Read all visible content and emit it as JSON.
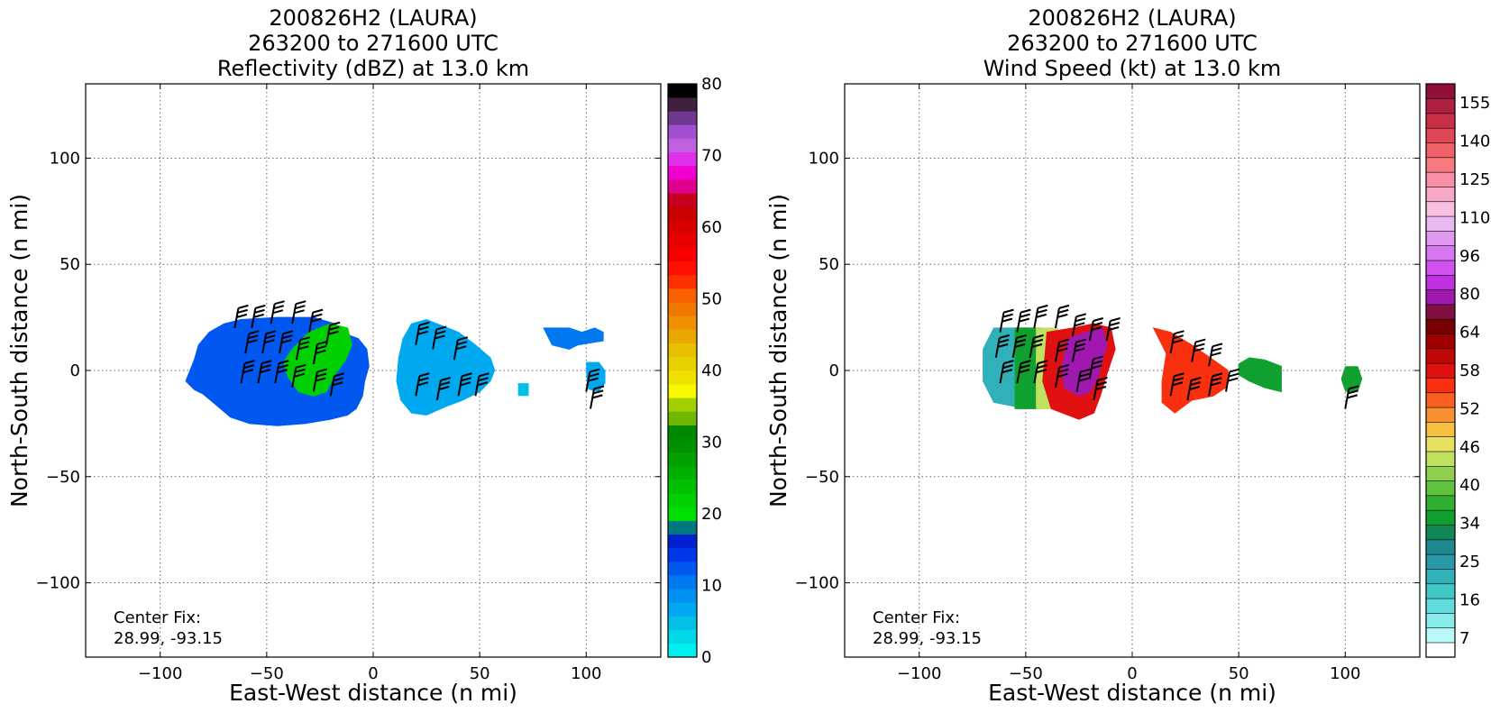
{
  "chart_data": [
    {
      "type": "heatmap",
      "title": [
        "200826H2 (LAURA)",
        "263200 to 271600 UTC",
        "Reflectivity (dBZ) at 13.0 km"
      ],
      "xlabel": "East-West distance (n mi)",
      "ylabel": "North-South distance (n mi)",
      "xlim": [
        -135,
        135
      ],
      "ylim": [
        -135,
        135
      ],
      "xticks": [
        -100,
        -50,
        0,
        50,
        100
      ],
      "yticks": [
        -100,
        -50,
        0,
        50,
        100
      ],
      "xtick_labels": [
        "−100",
        "−50",
        "0",
        "50",
        "100"
      ],
      "ytick_labels": [
        "−100",
        "−50",
        "0",
        "50",
        "100"
      ],
      "grid": true,
      "center_fix_label": "Center Fix:",
      "center_fix_value": "28.99, -93.15",
      "colorbar": {
        "min": 0,
        "max": 80,
        "ticks": [
          "0",
          "10",
          "20",
          "30",
          "40",
          "50",
          "60",
          "70",
          "80"
        ],
        "colors": [
          "#00f0f0",
          "#00d8e8",
          "#00c0e8",
          "#00a8f0",
          "#0090f0",
          "#0078f0",
          "#0058f0",
          "#0038e8",
          "#0020d0",
          "#007880",
          "#00e000",
          "#00d000",
          "#00c000",
          "#00b000",
          "#00a000",
          "#009000",
          "#008800",
          "#70b800",
          "#a0d000",
          "#f8f800",
          "#f0e000",
          "#e8d000",
          "#e8c000",
          "#e8a800",
          "#f09000",
          "#f07800",
          "#f86000",
          "#ff3000",
          "#ff1000",
          "#f80000",
          "#e80000",
          "#d80000",
          "#c80000",
          "#c80020",
          "#e00090",
          "#f000d0",
          "#e030e8",
          "#c060e0",
          "#a050d0",
          "#703890",
          "#402040",
          "#000000"
        ]
      },
      "echo_regions": [
        {
          "name": "main-blue",
          "value": 12
        },
        {
          "name": "inner-green",
          "value": 22
        },
        {
          "name": "east-cyan",
          "value": 6
        },
        {
          "name": "far-east",
          "value": 10
        }
      ]
    },
    {
      "type": "heatmap",
      "title": [
        "200826H2 (LAURA)",
        "263200 to 271600 UTC",
        "Wind Speed (kt) at 13.0 km"
      ],
      "xlabel": "East-West distance (n mi)",
      "ylabel": "North-South distance (n mi)",
      "xlim": [
        -135,
        135
      ],
      "ylim": [
        -135,
        135
      ],
      "xticks": [
        -100,
        -50,
        0,
        50,
        100
      ],
      "yticks": [
        -100,
        -50,
        0,
        50,
        100
      ],
      "xtick_labels": [
        "−100",
        "−50",
        "0",
        "50",
        "100"
      ],
      "ytick_labels": [
        "−100",
        "−50",
        "0",
        "50",
        "100"
      ],
      "grid": true,
      "center_fix_label": "Center Fix:",
      "center_fix_value": "28.99, -93.15",
      "colorbar": {
        "ticks": [
          "7",
          "16",
          "25",
          "34",
          "40",
          "46",
          "52",
          "58",
          "64",
          "80",
          "96",
          "110",
          "125",
          "140",
          "155"
        ],
        "colors": [
          "#ffffff",
          "#b8f8f8",
          "#88ecec",
          "#60dcdc",
          "#40c8c8",
          "#30b0b8",
          "#2898a8",
          "#208890",
          "#108858",
          "#10a030",
          "#30b030",
          "#60c040",
          "#90d050",
          "#c0e060",
          "#e8e060",
          "#f8c040",
          "#f89030",
          "#f86020",
          "#f83010",
          "#e01010",
          "#c00808",
          "#a00000",
          "#780000",
          "#801040",
          "#a018b0",
          "#c030e0",
          "#d050f0",
          "#d878f0",
          "#e098f0",
          "#e8b8f0",
          "#f8c0e0",
          "#f8a8c8",
          "#f890a8",
          "#f87880",
          "#f06068",
          "#e04858",
          "#c83048",
          "#b02040",
          "#901038"
        ]
      },
      "wind_regions": [
        {
          "name": "west-teal",
          "value": 24
        },
        {
          "name": "green-band",
          "value": 36
        },
        {
          "name": "yellow-band",
          "value": 45
        },
        {
          "name": "red-core-west",
          "value": 58
        },
        {
          "name": "purple-core",
          "value": 80
        },
        {
          "name": "red-core-east",
          "value": 56
        },
        {
          "name": "far-east",
          "value": 36
        }
      ]
    }
  ]
}
